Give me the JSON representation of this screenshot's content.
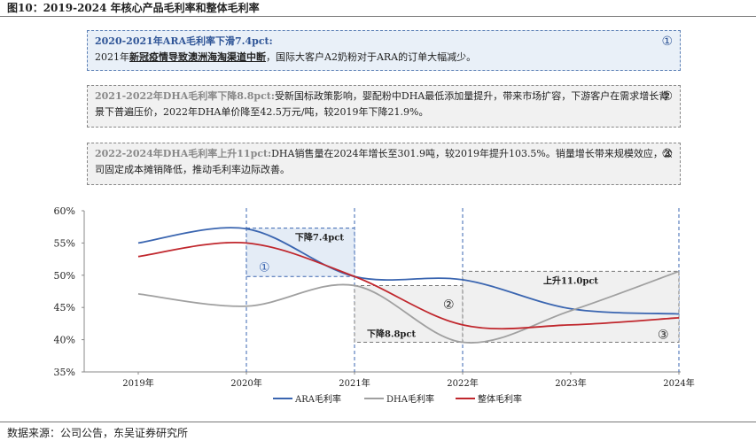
{
  "figure_title": "图10：2019-2024 年核心产品毛利率和整体毛利率",
  "notes": [
    {
      "head": "2020-2021年ARA毛利率下滑7.4pct:",
      "text_pre": "2021年",
      "text_underline": "新冠疫情导致澳洲海淘渠道中断",
      "text_post": "，国际大客户A2奶粉对于ARA的订单大幅减少。",
      "num": "①"
    },
    {
      "head": "2021-2022年DHA毛利率下降8.8pct:",
      "text": "受新国标政策影响，婴配粉中DHA最低添加量提升，带来市场扩容，下游客户在需求增长背景下普遍压价，2022年DHA单价降至42.5万元/吨，较2019年下降21.9%。",
      "num": "②"
    },
    {
      "head": "2022-2024年DHA毛利率上升11pct:",
      "text": "DHA销售量在2024年增长至301.9吨，较2019年提升103.5%。销量增长带来规模效应，公司固定成本摊销降低，推动毛利率边际改善。",
      "num": "③"
    }
  ],
  "chart_data": {
    "type": "line",
    "x": [
      "2019年",
      "2020年",
      "2021年",
      "2022年",
      "2023年",
      "2024年"
    ],
    "y_ticks": [
      "35%",
      "40%",
      "45%",
      "50%",
      "55%",
      "60%"
    ],
    "ylim": [
      35,
      60
    ],
    "series": [
      {
        "name": "ARA毛利率",
        "color": "#3a65b0",
        "values": [
          55.0,
          57.2,
          49.8,
          49.3,
          44.8,
          44.0
        ]
      },
      {
        "name": "DHA毛利率",
        "color": "#a0a0a0",
        "values": [
          47.1,
          45.2,
          48.4,
          39.6,
          44.5,
          50.6
        ]
      },
      {
        "name": "整体毛利率",
        "color": "#c0272d",
        "values": [
          52.9,
          55.0,
          49.8,
          42.3,
          42.3,
          43.4
        ]
      }
    ],
    "annotations": [
      {
        "label": "下降7.4pct",
        "num": "①"
      },
      {
        "label": "下降8.8pct",
        "num": "②"
      },
      {
        "label": "上升11.0pct",
        "num": "③"
      }
    ],
    "legend_position": "bottom"
  },
  "source": "数据来源：公司公告，东吴证券研究所"
}
